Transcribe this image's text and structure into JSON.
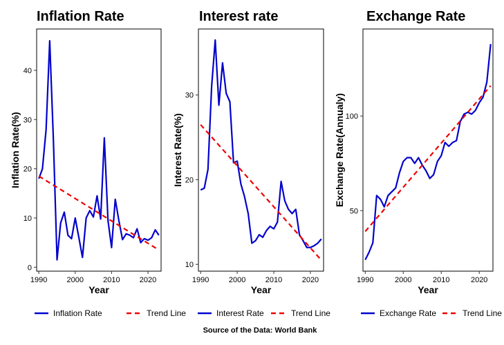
{
  "source": "Source of the Data: World Bank",
  "colors": {
    "series": "#0000cc",
    "trend": "#ee0000"
  },
  "chart_data": [
    {
      "type": "line",
      "title": "Inflation Rate",
      "xlabel": "Year",
      "ylabel": "Inflation Rate(%)",
      "xlim": [
        1989.4,
        2023.6
      ],
      "ylim": [
        -0.8,
        48.4
      ],
      "xticks": [
        1990,
        2000,
        2010,
        2020
      ],
      "yticks": [
        0,
        10,
        20,
        30,
        40
      ],
      "grid": false,
      "legend_position": "bottom",
      "x": [
        1990,
        1991,
        1992,
        1993,
        1994,
        1995,
        1996,
        1997,
        1998,
        1999,
        2000,
        2001,
        2002,
        2003,
        2004,
        2005,
        2006,
        2007,
        2008,
        2009,
        2010,
        2011,
        2012,
        2013,
        2014,
        2015,
        2016,
        2017,
        2018,
        2019,
        2020,
        2021,
        2022,
        2023
      ],
      "series": [
        {
          "name": "Inflation Rate",
          "style": "solid",
          "values": [
            18.0,
            20.0,
            28.0,
            46.0,
            26.0,
            1.5,
            9.0,
            11.2,
            6.5,
            5.8,
            10.0,
            6.0,
            2.0,
            10.0,
            11.5,
            10.2,
            14.5,
            9.8,
            26.3,
            9.5,
            4.0,
            13.8,
            9.5,
            5.6,
            6.8,
            6.5,
            6.0,
            7.8,
            5.0,
            5.8,
            5.5,
            6.0,
            7.6,
            6.5
          ]
        },
        {
          "name": "Trend Line",
          "style": "dashed",
          "start": [
            1990,
            18.5
          ],
          "end": [
            2023,
            3.5
          ]
        }
      ]
    },
    {
      "type": "line",
      "title": "Interest rate",
      "xlabel": "Year",
      "ylabel": "Interest Rate(%)",
      "xlim": [
        1989.4,
        2023.6
      ],
      "ylim": [
        9.2,
        37.8
      ],
      "xticks": [
        1990,
        2000,
        2010,
        2020
      ],
      "yticks": [
        10,
        20,
        30
      ],
      "grid": false,
      "legend_position": "bottom",
      "x": [
        1990,
        1991,
        1992,
        1993,
        1994,
        1995,
        1996,
        1997,
        1998,
        1999,
        2000,
        2001,
        2002,
        2003,
        2004,
        2005,
        2006,
        2007,
        2008,
        2009,
        2010,
        2011,
        2012,
        2013,
        2014,
        2015,
        2016,
        2017,
        2018,
        2019,
        2020,
        2021,
        2022,
        2023
      ],
      "series": [
        {
          "name": "Interest Rate",
          "style": "solid",
          "values": [
            18.8,
            19.0,
            21.2,
            31.0,
            36.5,
            28.8,
            33.8,
            30.2,
            29.2,
            22.0,
            22.2,
            19.5,
            18.0,
            16.0,
            12.5,
            12.8,
            13.5,
            13.2,
            14.0,
            14.5,
            14.2,
            15.0,
            19.8,
            17.5,
            16.5,
            16.0,
            16.5,
            13.5,
            12.8,
            12.0,
            12.0,
            12.2,
            12.5,
            13.0
          ]
        },
        {
          "name": "Trend Line",
          "style": "dashed",
          "start": [
            1990,
            26.5
          ],
          "end": [
            2023,
            10.5
          ]
        }
      ]
    },
    {
      "type": "line",
      "title": "Exchange Rate",
      "xlabel": "Year",
      "ylabel": "Exchange Rate(Annualy)",
      "xlim": [
        1989.4,
        2023.6
      ],
      "ylim": [
        18,
        146
      ],
      "xticks": [
        1990,
        2000,
        2010,
        2020
      ],
      "yticks": [
        50,
        100
      ],
      "grid": false,
      "legend_position": "bottom",
      "x": [
        1990,
        1991,
        1992,
        1993,
        1994,
        1995,
        1996,
        1997,
        1998,
        1999,
        2000,
        2001,
        2002,
        2003,
        2004,
        2005,
        2006,
        2007,
        2008,
        2009,
        2010,
        2011,
        2012,
        2013,
        2014,
        2015,
        2016,
        2017,
        2018,
        2019,
        2020,
        2021,
        2022,
        2023
      ],
      "series": [
        {
          "name": "Exchange Rate",
          "style": "solid",
          "values": [
            24,
            28,
            33,
            58,
            56,
            52,
            58,
            60,
            62,
            70,
            76,
            78,
            78,
            75,
            78,
            74,
            71,
            67,
            69,
            76,
            79,
            86,
            84,
            86,
            87,
            97,
            101,
            102,
            101,
            103,
            107,
            110,
            118,
            138
          ]
        },
        {
          "name": "Trend Line",
          "style": "dashed",
          "start": [
            1990,
            39
          ],
          "end": [
            2023,
            116
          ]
        }
      ]
    }
  ]
}
